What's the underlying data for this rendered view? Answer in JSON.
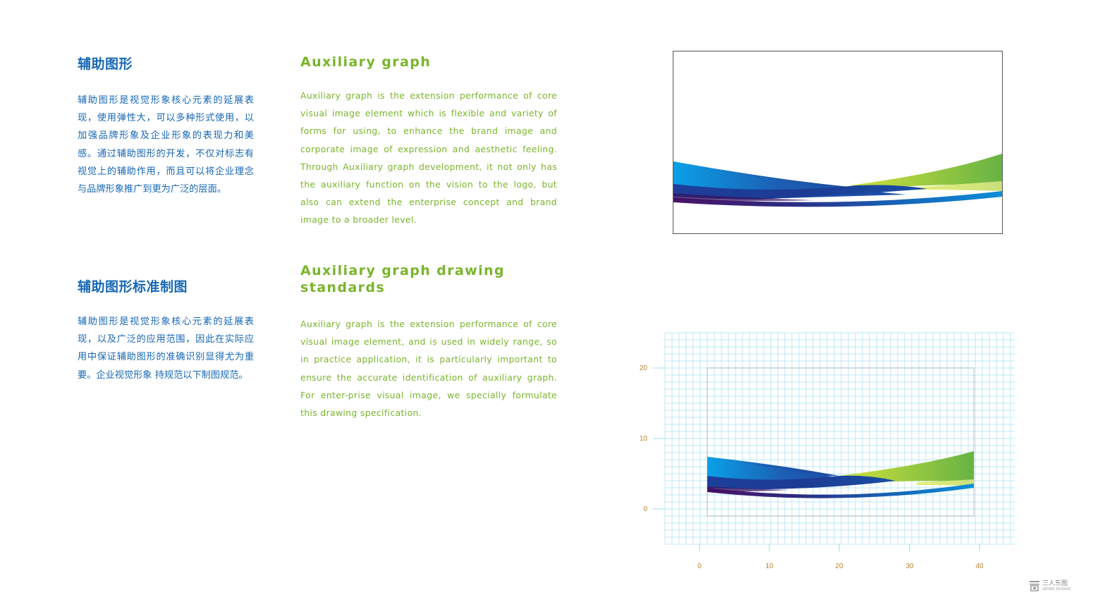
{
  "section1": {
    "zh_title": "辅助图形",
    "zh_body": "辅助图形是视觉形象核心元素的延展表现，使用弹性大，可以多种形式使用，以加强品牌形象及企业形象的表现力和美感。通过辅助图形的开发，不仅对标志有视觉上的辅助作用，而且可以将企业理念与品牌形象推广到更为广泛的层面。",
    "en_title": "Auxiliary graph",
    "en_body": "Auxiliary graph is the extension performance of core visual image element which is flexible and variety of forms for using, to enhance the brand image and corporate image of expression and aesthetic feeling. Through Auxiliary graph development, it not only has the auxiliary function on the vision to the logo, but also can extend the enterprise concept and brand image to a broader level."
  },
  "section2": {
    "zh_title": "辅助图形标准制图",
    "zh_body": "辅助图形是视觉形象核心元素的延展表现，以及广泛的应用范围，因此在实际应用中保证辅助图形的准确识别显得尤为重要。企业视觉形象 持规范以下制图规范。",
    "en_title": "Auxiliary graph drawing standards",
    "en_body": "Auxiliary graph is the extension performance of core visual image element, and is  used in widely range, so in practice application, it is particularly important to ensure the accurate identification of auxiliary graph.  For enter-prise visual image, we specially formulate this drawing specification."
  },
  "grid_axes": {
    "x_ticks": [
      "0",
      "10",
      "20",
      "30",
      "40"
    ],
    "y_ticks": [
      "20",
      "10",
      "0"
    ]
  },
  "colors": {
    "zh_blue": "#1767b4",
    "en_green": "#79b52b",
    "grid_line": "#7fd0ea",
    "tick_label": "#b5832f"
  },
  "brand": {
    "name": "三人东图",
    "sub": "SENSE DESIGN"
  }
}
